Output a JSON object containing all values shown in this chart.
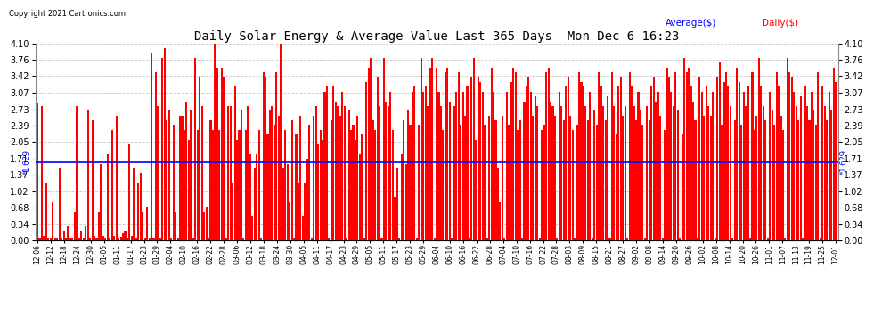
{
  "title": "Daily Solar Energy & Average Value Last 365 Days  Mon Dec 6 16:23",
  "copyright": "Copyright 2021 Cartronics.com",
  "average_value": 1.629,
  "ylim": [
    0.0,
    4.1
  ],
  "yticks": [
    0.0,
    0.34,
    0.68,
    1.02,
    1.37,
    1.71,
    2.05,
    2.39,
    2.73,
    3.07,
    3.42,
    3.76,
    4.1
  ],
  "bar_color": "#ff0000",
  "avg_line_color": "#0000ff",
  "background_color": "#ffffff",
  "grid_color": "#bbbbbb",
  "legend_average_color": "#0000ff",
  "legend_daily_color": "#ff0000",
  "xtick_labels": [
    "12-06",
    "12-12",
    "12-18",
    "12-24",
    "12-30",
    "01-05",
    "01-11",
    "01-17",
    "01-23",
    "01-29",
    "02-04",
    "02-10",
    "02-16",
    "02-22",
    "02-28",
    "03-06",
    "03-12",
    "03-18",
    "03-24",
    "03-30",
    "04-05",
    "04-11",
    "04-17",
    "04-23",
    "04-29",
    "05-05",
    "05-11",
    "05-17",
    "05-23",
    "05-29",
    "06-04",
    "06-10",
    "06-16",
    "06-22",
    "06-28",
    "07-04",
    "07-10",
    "07-16",
    "07-22",
    "07-28",
    "08-03",
    "08-09",
    "08-15",
    "08-21",
    "08-27",
    "09-02",
    "09-08",
    "09-14",
    "09-20",
    "09-26",
    "10-02",
    "10-08",
    "10-14",
    "10-20",
    "10-26",
    "11-01",
    "11-07",
    "11-13",
    "11-19",
    "11-25",
    "12-01"
  ],
  "bar_values": [
    2.85,
    0.05,
    2.8,
    0.1,
    1.2,
    0.05,
    0.05,
    0.8,
    0.05,
    0.05,
    1.5,
    0.05,
    0.2,
    0.05,
    0.3,
    0.05,
    0.05,
    0.6,
    2.8,
    0.05,
    0.2,
    0.05,
    0.3,
    2.7,
    0.05,
    2.5,
    0.1,
    0.05,
    0.6,
    1.6,
    0.1,
    0.05,
    1.8,
    0.05,
    2.3,
    0.1,
    2.6,
    0.05,
    0.08,
    0.15,
    0.2,
    0.05,
    2.0,
    0.1,
    1.5,
    0.05,
    1.2,
    1.4,
    0.6,
    0.05,
    0.7,
    0.05,
    3.9,
    0.05,
    3.5,
    2.8,
    0.05,
    3.8,
    4.0,
    2.5,
    2.7,
    0.05,
    2.4,
    0.6,
    0.05,
    2.6,
    2.6,
    2.3,
    2.9,
    2.1,
    2.7,
    0.05,
    3.8,
    2.3,
    3.4,
    2.8,
    0.6,
    0.7,
    0.05,
    2.5,
    2.3,
    4.25,
    3.6,
    2.3,
    3.6,
    3.4,
    0.05,
    2.8,
    2.8,
    1.2,
    3.2,
    2.1,
    2.3,
    2.7,
    0.05,
    2.3,
    2.8,
    1.8,
    0.5,
    1.5,
    1.8,
    2.3,
    0.05,
    3.5,
    3.4,
    2.2,
    2.7,
    2.8,
    2.4,
    3.5,
    2.6,
    4.1,
    1.5,
    2.3,
    1.6,
    0.8,
    2.5,
    0.05,
    2.2,
    1.2,
    2.6,
    0.5,
    1.2,
    1.7,
    2.4,
    0.05,
    2.6,
    2.8,
    2.0,
    2.3,
    2.1,
    3.1,
    3.2,
    0.05,
    2.5,
    3.2,
    2.9,
    2.8,
    2.6,
    3.1,
    2.8,
    0.05,
    2.7,
    2.3,
    2.4,
    2.1,
    2.6,
    1.8,
    2.2,
    0.05,
    3.3,
    3.6,
    3.8,
    2.5,
    2.3,
    3.4,
    2.8,
    0.05,
    3.8,
    2.9,
    2.8,
    3.1,
    2.3,
    0.9,
    1.5,
    0.05,
    1.8,
    2.5,
    1.6,
    2.7,
    2.4,
    3.1,
    3.2,
    0.05,
    2.4,
    3.8,
    3.1,
    3.2,
    2.8,
    3.6,
    3.8,
    0.05,
    3.6,
    3.1,
    2.8,
    2.3,
    3.5,
    3.6,
    2.9,
    0.05,
    2.8,
    3.1,
    3.5,
    2.4,
    3.1,
    2.6,
    3.2,
    0.05,
    3.4,
    3.8,
    2.1,
    3.4,
    3.3,
    3.1,
    2.4,
    0.05,
    2.6,
    3.6,
    3.1,
    2.5,
    1.5,
    0.8,
    2.6,
    0.05,
    3.1,
    2.4,
    3.3,
    3.6,
    3.5,
    2.3,
    2.5,
    0.05,
    2.9,
    3.2,
    3.4,
    3.1,
    2.6,
    3.0,
    2.8,
    0.05,
    2.3,
    2.4,
    3.5,
    3.6,
    2.9,
    2.8,
    2.6,
    0.05,
    3.1,
    2.8,
    2.5,
    3.2,
    3.4,
    2.6,
    2.3,
    0.05,
    2.4,
    3.5,
    3.3,
    3.2,
    2.8,
    2.5,
    3.1,
    0.05,
    2.7,
    2.4,
    3.5,
    3.2,
    2.8,
    2.5,
    3.0,
    0.05,
    3.5,
    2.8,
    2.2,
    3.2,
    3.4,
    2.6,
    2.8,
    0.05,
    3.5,
    3.2,
    2.8,
    2.5,
    3.1,
    2.7,
    2.4,
    0.05,
    2.8,
    2.5,
    3.2,
    3.4,
    2.9,
    3.1,
    2.6,
    0.05,
    2.3,
    3.6,
    3.4,
    3.1,
    2.8,
    3.5,
    2.7,
    0.05,
    2.2,
    3.8,
    3.5,
    3.6,
    3.2,
    2.9,
    2.5,
    0.05,
    3.4,
    3.1,
    2.6,
    3.2,
    2.8,
    2.6,
    3.1,
    0.05,
    3.4,
    3.7,
    2.4,
    3.3,
    3.5,
    3.2,
    2.8,
    0.05,
    2.5,
    3.6,
    3.3,
    2.4,
    3.1,
    2.8,
    3.2,
    0.05,
    3.5,
    2.3,
    2.6,
    3.8,
    3.2,
    2.8,
    2.5,
    0.05,
    3.1,
    2.7,
    2.4,
    3.5,
    3.2,
    2.6,
    2.3,
    0.05,
    3.8,
    3.5,
    3.4,
    3.1,
    2.8,
    2.5,
    3.0,
    0.05,
    3.2,
    2.8,
    2.5,
    3.1,
    2.7,
    2.4,
    3.5,
    0.05,
    3.2,
    2.8,
    2.5,
    3.1,
    2.7,
    3.6,
    3.3
  ]
}
